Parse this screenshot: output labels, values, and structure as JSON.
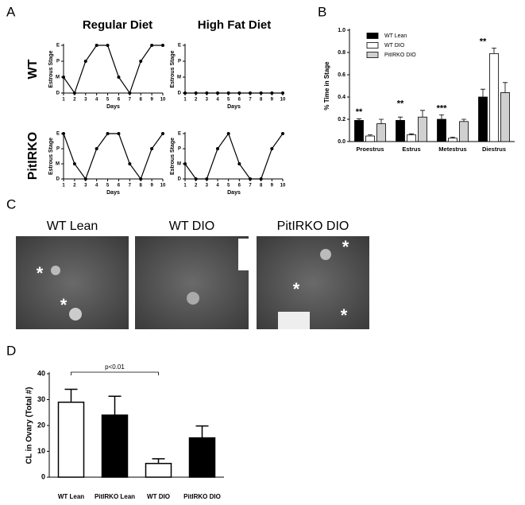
{
  "panel_labels": [
    "A",
    "B",
    "C",
    "D"
  ],
  "panel_a": {
    "columns": [
      "Regular Diet",
      "High Fat Diet"
    ],
    "rows": [
      "WT",
      "PitIRKO"
    ]
  },
  "chart_data": [
    {
      "type": "line",
      "xlabel": "Days",
      "ylabel": "Estrous Stage",
      "x": [
        1,
        2,
        3,
        4,
        5,
        6,
        7,
        8,
        9,
        10
      ],
      "values": [
        1,
        0,
        2,
        3,
        3,
        1,
        0,
        2,
        3,
        3
      ],
      "xlim": [
        1,
        10
      ],
      "xticks": [
        1,
        2,
        3,
        4,
        5,
        6,
        7,
        8,
        9,
        10
      ],
      "ylim": [
        0,
        3
      ],
      "yticks": [
        {
          "value": 0,
          "label": "D"
        },
        {
          "value": 1,
          "label": "M"
        },
        {
          "value": 2,
          "label": "P"
        },
        {
          "value": 3,
          "label": "E"
        }
      ],
      "color": "#000000"
    },
    {
      "type": "line",
      "xlabel": "Days",
      "ylabel": "Estrous Stage",
      "x": [
        1,
        2,
        3,
        4,
        5,
        6,
        7,
        8,
        9,
        10
      ],
      "values": [
        0,
        0,
        0,
        0,
        0,
        0,
        0,
        0,
        0,
        0
      ],
      "xlim": [
        1,
        10
      ],
      "xticks": [
        1,
        2,
        3,
        4,
        5,
        6,
        7,
        8,
        9,
        10
      ],
      "ylim": [
        0,
        3
      ],
      "yticks": [
        {
          "value": 0,
          "label": "D"
        },
        {
          "value": 1,
          "label": "M"
        },
        {
          "value": 2,
          "label": "P"
        },
        {
          "value": 3,
          "label": "E"
        }
      ],
      "color": "#000000"
    },
    {
      "type": "line",
      "xlabel": "Days",
      "ylabel": "Estrous Stage",
      "x": [
        1,
        2,
        3,
        4,
        5,
        6,
        7,
        8,
        9,
        10
      ],
      "values": [
        3,
        1,
        0,
        2,
        3,
        3,
        1,
        0,
        2,
        3
      ],
      "xlim": [
        1,
        10
      ],
      "xticks": [
        1,
        2,
        3,
        4,
        5,
        6,
        7,
        8,
        9,
        10
      ],
      "ylim": [
        0,
        3
      ],
      "yticks": [
        {
          "value": 0,
          "label": "D"
        },
        {
          "value": 1,
          "label": "M"
        },
        {
          "value": 2,
          "label": "P"
        },
        {
          "value": 3,
          "label": "E"
        }
      ],
      "color": "#000000"
    },
    {
      "type": "line",
      "xlabel": "Days",
      "ylabel": "Estrous Stage",
      "x": [
        1,
        2,
        3,
        4,
        5,
        6,
        7,
        8,
        9,
        10
      ],
      "values": [
        1,
        0,
        0,
        2,
        3,
        1,
        0,
        0,
        2,
        3
      ],
      "xlim": [
        1,
        10
      ],
      "xticks": [
        1,
        2,
        3,
        4,
        5,
        6,
        7,
        8,
        9,
        10
      ],
      "ylim": [
        0,
        3
      ],
      "yticks": [
        {
          "value": 0,
          "label": "D"
        },
        {
          "value": 1,
          "label": "M"
        },
        {
          "value": 2,
          "label": "P"
        },
        {
          "value": 3,
          "label": "E"
        }
      ],
      "color": "#000000"
    },
    {
      "type": "grouped_bar",
      "ylabel": "% Time in Stage",
      "categories": [
        "Proestrus",
        "Estrus",
        "Metestrus",
        "Diestrus"
      ],
      "series": [
        {
          "name": "WT Lean",
          "color": "#000000",
          "values": [
            0.19,
            0.19,
            0.2,
            0.4
          ],
          "errors": [
            0.015,
            0.03,
            0.04,
            0.07
          ]
        },
        {
          "name": "WT DIO",
          "color": "#ffffff",
          "values": [
            0.05,
            0.06,
            0.03,
            0.79
          ],
          "errors": [
            0.01,
            0.01,
            0.01,
            0.05
          ]
        },
        {
          "name": "PitIRKO DIO",
          "color": "#d0d0d0",
          "values": [
            0.16,
            0.22,
            0.18,
            0.44
          ],
          "errors": [
            0.04,
            0.06,
            0.02,
            0.09
          ]
        }
      ],
      "significance": [
        "**",
        "**",
        "***",
        "**"
      ],
      "ylim": [
        0,
        1
      ],
      "yticks": [
        {
          "value": 0,
          "label": "0.0"
        },
        {
          "value": 0.2,
          "label": "0.2"
        },
        {
          "value": 0.4,
          "label": "0.4"
        },
        {
          "value": 0.6,
          "label": "0.6"
        },
        {
          "value": 0.8,
          "label": "0.8"
        },
        {
          "value": 1,
          "label": "1.0"
        }
      ],
      "legend": "upper-left"
    },
    {
      "type": "bar",
      "ylabel": "CL in Ovary (Total #)",
      "categories": [
        "WT Lean",
        "PitIRKO Lean",
        "WT DIO",
        "PitIRKO DIO"
      ],
      "values": [
        29,
        24,
        5.3,
        15.2
      ],
      "errors": [
        5,
        7.3,
        1.8,
        4.6
      ],
      "colors": [
        "#ffffff",
        "#000000",
        "#ffffff",
        "#000000"
      ],
      "comparisons": [
        {
          "label": "p<0.01",
          "groups": [
            "WT Lean",
            "WT DIO"
          ]
        }
      ],
      "ylim": [
        0,
        40
      ],
      "yticks": [
        0,
        10,
        20,
        30,
        40
      ]
    }
  ],
  "panel_c": {
    "images": [
      {
        "label": "WT Lean",
        "marks": [
          "*",
          "*"
        ]
      },
      {
        "label": "WT DIO",
        "marks": []
      },
      {
        "label": "PitIRKO DIO",
        "marks": [
          "*",
          "*",
          "*"
        ]
      }
    ]
  }
}
